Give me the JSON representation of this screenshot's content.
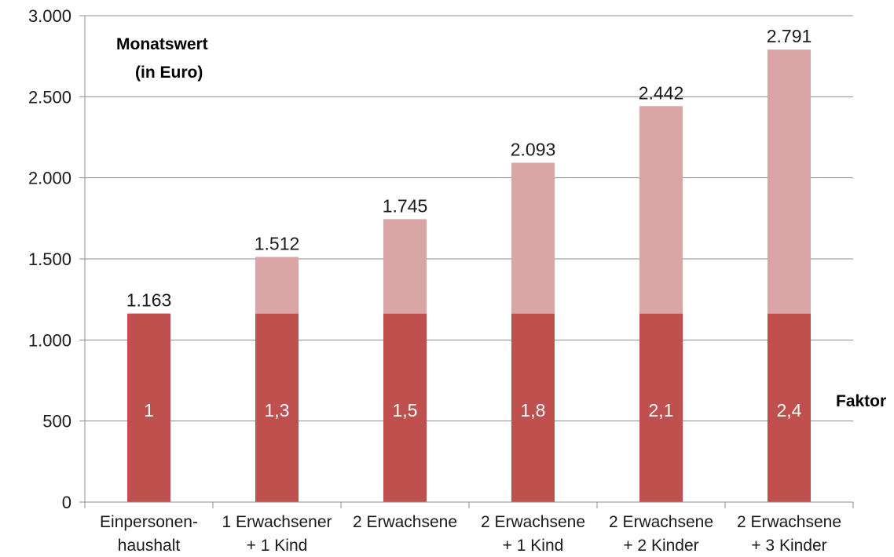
{
  "chart_data": {
    "type": "bar",
    "stacked": true,
    "categories": [
      [
        "Einpersonen-",
        "haushalt"
      ],
      [
        "1 Erwachsener",
        "+ 1 Kind"
      ],
      [
        "2 Erwachsene"
      ],
      [
        "2 Erwachsene",
        "+ 1 Kind"
      ],
      [
        "2 Erwachsene",
        "+ 2 Kinder"
      ],
      [
        "2 Erwachsene",
        "+ 3 Kinder"
      ]
    ],
    "totals": [
      1163,
      1512,
      1745,
      2093,
      2442,
      2791
    ],
    "total_labels": [
      "1.163",
      "1.512",
      "1.745",
      "2.093",
      "2.442",
      "2.791"
    ],
    "base_value": 1163,
    "factors": [
      "1",
      "1,3",
      "1,5",
      "1,8",
      "2,1",
      "2,4"
    ],
    "ylim": [
      0,
      3000
    ],
    "yticks": [
      0,
      500,
      1000,
      1500,
      2000,
      2500,
      3000
    ],
    "ytick_labels": [
      "0",
      "500",
      "1.000",
      "1.500",
      "2.000",
      "2.500",
      "3.000"
    ],
    "ylabel_lines": [
      "Monatswert",
      "(in Euro)"
    ],
    "factor_title": "Faktor",
    "grid": true,
    "colors": {
      "base": "#c0504d",
      "extra": "#d9a6a5",
      "grid": "#8c8c8c",
      "axis": "#8c8c8c"
    }
  }
}
